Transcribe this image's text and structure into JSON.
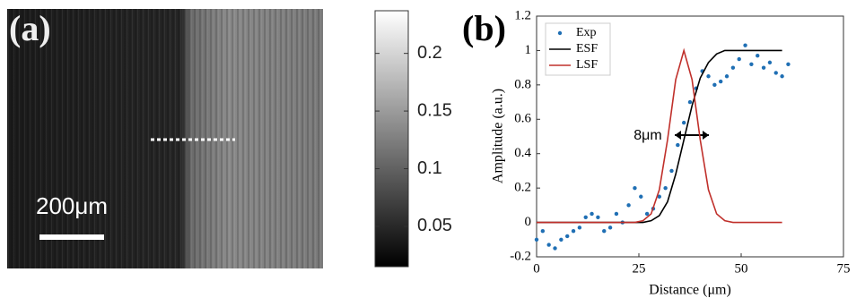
{
  "chart_data": [
    {
      "type": "image",
      "panel_label": "(a)",
      "scale_bar_label": "200μm",
      "colorbar": {
        "lim": [
          0.015,
          0.237
        ],
        "ticks": [
          0.05,
          0.1,
          0.15,
          0.2
        ]
      }
    },
    {
      "type": "line",
      "panel_label": "(b)",
      "xlabel": "Distance (μm)",
      "ylabel": "Amplitude (a.u.)",
      "xlim": [
        0,
        75
      ],
      "xticks": [
        0,
        25,
        50,
        75
      ],
      "ylim": [
        -0.2,
        1.2
      ],
      "yticks": [
        -0.2,
        0,
        0.2,
        0.4,
        0.6,
        0.8,
        1,
        1.2
      ],
      "legend": "upper left",
      "annotation": "8μm",
      "series": [
        {
          "name": "Exp",
          "color": "#1f6fb4",
          "mode": "markers",
          "x": [
            0,
            1.5,
            3,
            4.5,
            6,
            7.5,
            9,
            10.5,
            12,
            13.5,
            15,
            16.5,
            18,
            19.5,
            21,
            22.5,
            24,
            25.5,
            27,
            28.5,
            30,
            31.5,
            33,
            34.5,
            36,
            37.5,
            39,
            40.5,
            42,
            43.5,
            45,
            46.5,
            48,
            49.5,
            51,
            52.5,
            54,
            55.5,
            57,
            58.5,
            60,
            61.5
          ],
          "values": [
            -0.1,
            -0.05,
            -0.13,
            -0.15,
            -0.1,
            -0.08,
            -0.05,
            -0.03,
            0.03,
            0.05,
            0.03,
            -0.05,
            -0.03,
            0.05,
            0.0,
            0.1,
            0.2,
            0.15,
            0.05,
            0.08,
            0.15,
            0.2,
            0.3,
            0.45,
            0.58,
            0.7,
            0.78,
            0.88,
            0.85,
            0.8,
            0.82,
            0.85,
            0.9,
            0.95,
            1.03,
            0.92,
            0.97,
            0.9,
            0.93,
            0.87,
            0.85,
            0.92
          ]
        },
        {
          "name": "ESF",
          "color": "#000000",
          "mode": "lines",
          "x": [
            0,
            4,
            8,
            12,
            16,
            20,
            24,
            26,
            28,
            30,
            32,
            34,
            36,
            38,
            40,
            42,
            44,
            46,
            48,
            52,
            56,
            60
          ],
          "values": [
            0,
            0,
            0,
            0,
            0,
            0,
            0,
            0,
            0.01,
            0.04,
            0.12,
            0.28,
            0.48,
            0.68,
            0.84,
            0.93,
            0.98,
            1,
            1,
            1,
            1,
            1
          ]
        },
        {
          "name": "LSF",
          "color": "#c0302b",
          "mode": "lines",
          "x": [
            0,
            4,
            8,
            12,
            16,
            20,
            24,
            26,
            28,
            30,
            32,
            34,
            36,
            38,
            40,
            42,
            44,
            46,
            48,
            52,
            56,
            60
          ],
          "values": [
            0,
            0,
            0,
            0,
            0,
            0,
            0,
            0.01,
            0.05,
            0.19,
            0.48,
            0.83,
            1,
            0.83,
            0.48,
            0.19,
            0.05,
            0.01,
            0,
            0,
            0,
            0
          ]
        }
      ]
    }
  ]
}
